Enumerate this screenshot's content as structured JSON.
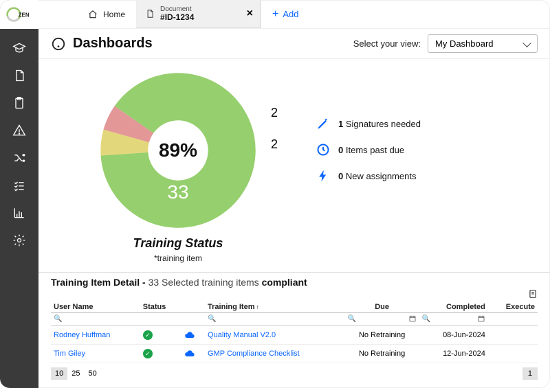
{
  "brand": "ZENQMS",
  "tabs": {
    "home": "Home",
    "doc_label": "Document",
    "doc_id": "#ID-1234",
    "add": "Add"
  },
  "header": {
    "title": "Dashboards",
    "select_label": "Select your view:",
    "select_value": "My Dashboard"
  },
  "chart": {
    "type": "donut",
    "title": "Training Status",
    "subtitle": "*training item",
    "center_label": "89%",
    "big_number": "33",
    "slices": [
      {
        "value": 33,
        "label": "",
        "color": "#96cf6d"
      },
      {
        "value": 2,
        "label": "2",
        "color": "#e3d77b"
      },
      {
        "value": 2,
        "label": "2",
        "color": "#e39797"
      }
    ],
    "background_color": "#ffffff",
    "inner_color": "#ffffff",
    "label_fontsize": 18,
    "center_fontsize": 28
  },
  "metrics": [
    {
      "count": "1",
      "text": "Signatures needed",
      "icon": "pen"
    },
    {
      "count": "0",
      "text": "Items past due",
      "icon": "clock"
    },
    {
      "count": "0",
      "text": "New assignments",
      "icon": "bolt"
    }
  ],
  "detail": {
    "title_bold": "Training Item Detail -",
    "title_thin": "33 Selected training items",
    "title_bold2": "compliant"
  },
  "table": {
    "columns": [
      "User Name",
      "Status",
      "",
      "Training Item",
      "Due",
      "Completed",
      "Execute"
    ],
    "sort_col": "Training Item",
    "rows": [
      {
        "user": "Rodney Huffman",
        "status_ok": true,
        "item": "Quality Manual V2.0",
        "due": "No Retraining",
        "completed": "08-Jun-2024"
      },
      {
        "user": "Tim Giley",
        "status_ok": true,
        "item": "GMP Compliance Checklist",
        "due": "No Retraining",
        "completed": "12-Jun-2024"
      }
    ]
  },
  "pager": {
    "sizes": [
      "10",
      "25",
      "50"
    ],
    "selected_size": "10",
    "page": "1"
  },
  "colors": {
    "sidebar_bg": "#3a3a3a",
    "link": "#0a66ff",
    "ok_green": "#1aa34a"
  }
}
